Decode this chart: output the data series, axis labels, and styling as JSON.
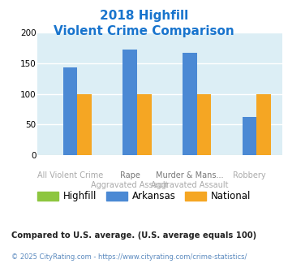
{
  "title_line1": "2018 Highfill",
  "title_line2": "Violent Crime Comparison",
  "title_color": "#1874cd",
  "category_labels_top": [
    "",
    "Rape",
    "Murder & Mans...",
    ""
  ],
  "category_labels_bottom": [
    "All Violent Crime",
    "Aggravated Assault",
    "Aggravated Assault",
    "Robbery"
  ],
  "highfill_values": [
    0,
    0,
    0,
    0
  ],
  "arkansas_values": [
    143,
    172,
    166,
    63
  ],
  "national_values": [
    100,
    100,
    100,
    100
  ],
  "highfill_color": "#8dc63f",
  "arkansas_color": "#4b89d4",
  "national_color": "#f5a623",
  "ylim": [
    0,
    200
  ],
  "yticks": [
    0,
    50,
    100,
    150,
    200
  ],
  "plot_bg_color": "#dceef5",
  "legend_labels": [
    "Highfill",
    "Arkansas",
    "National"
  ],
  "footnote1": "Compared to U.S. average. (U.S. average equals 100)",
  "footnote2": "© 2025 CityRating.com - https://www.cityrating.com/crime-statistics/",
  "footnote1_color": "#222222",
  "footnote2_color": "#5b8abf"
}
